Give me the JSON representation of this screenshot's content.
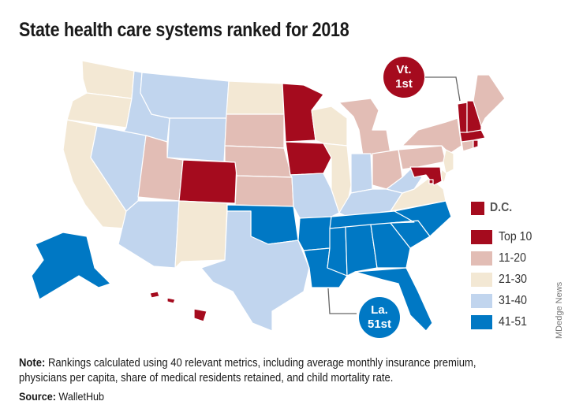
{
  "title": "State health care systems ranked for 2018",
  "legend": {
    "dc_label": "D.C.",
    "items": [
      {
        "key": "top10",
        "label": "Top 10",
        "color": "#a50b1e"
      },
      {
        "key": "r11_20",
        "label": "11-20",
        "color": "#e2bdb5"
      },
      {
        "key": "r21_30",
        "label": "21-30",
        "color": "#f3e8d4"
      },
      {
        "key": "r31_40",
        "label": "31-40",
        "color": "#c1d5ee"
      },
      {
        "key": "r41_51",
        "label": "41-51",
        "color": "#0078c4"
      }
    ]
  },
  "callouts": {
    "top": {
      "line1": "Vt.",
      "line2": "1st",
      "color": "#a50b1e"
    },
    "bottom": {
      "line1": "La.",
      "line2": "51st",
      "color": "#0078c4"
    }
  },
  "states": {
    "WA": "r21_30",
    "OR": "r21_30",
    "CA": "r21_30",
    "ID": "r31_40",
    "NV": "r31_40",
    "MT": "r31_40",
    "WY": "r31_40",
    "UT": "r11_20",
    "AZ": "r31_40",
    "CO": "top10",
    "NM": "r21_30",
    "ND": "r21_30",
    "SD": "r11_20",
    "NE": "r11_20",
    "KS": "r11_20",
    "OK": "r41_51",
    "TX": "r31_40",
    "MN": "top10",
    "IA": "top10",
    "MO": "r31_40",
    "AR": "r41_51",
    "LA": "r41_51",
    "WI": "r21_30",
    "IL": "r21_30",
    "MI": "r11_20",
    "IN": "r31_40",
    "OH": "r11_20",
    "KY": "r31_40",
    "TN": "r41_51",
    "MS": "r41_51",
    "AL": "r41_51",
    "GA": "r41_51",
    "FL": "r41_51",
    "SC": "r41_51",
    "NC": "r41_51",
    "VA": "r21_30",
    "WV": "r31_40",
    "PA": "r11_20",
    "NY": "r11_20",
    "NJ": "r21_30",
    "DE": "r21_30",
    "MD": "top10",
    "CT": "r11_20",
    "RI": "top10",
    "MA": "top10",
    "VT": "top10",
    "NH": "top10",
    "ME": "r11_20",
    "AK": "r41_51",
    "HI": "top10",
    "DC": "top10"
  },
  "note_label": "Note:",
  "note_text": " Rankings calculated using 40 relevant metrics, including average monthly insurance premium, physicians per capita, share of medical residents retained, and child mortality rate.",
  "source_label": "Source:",
  "source_text": " WalletHub",
  "credit": "MDedge News"
}
